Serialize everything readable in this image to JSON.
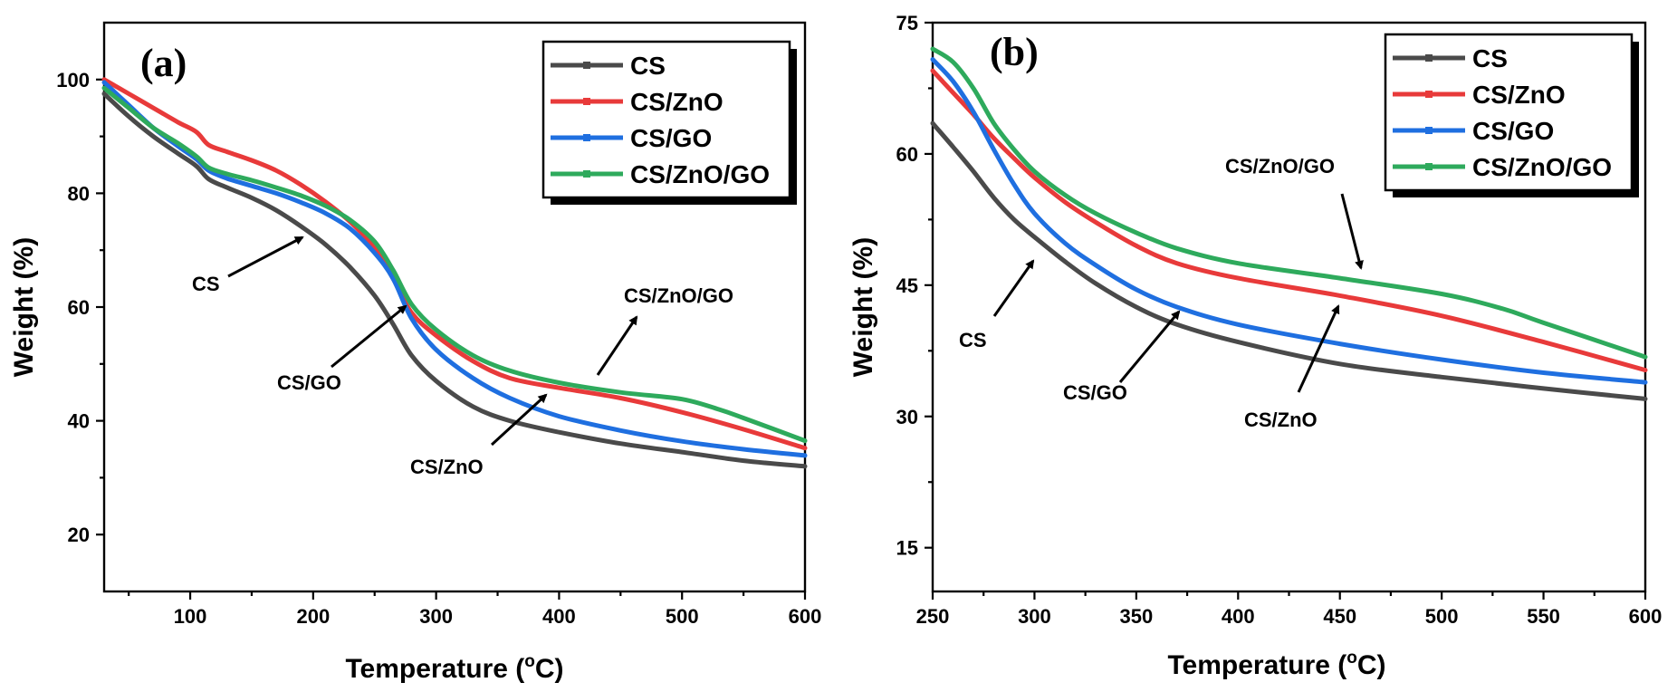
{
  "figure": {
    "colors": {
      "CS": "#4a4a4a",
      "CS/ZnO": "#e83a3a",
      "CS/GO": "#1f6fe0",
      "CS/ZnO/GO": "#2eaa5c"
    }
  },
  "chart_data": [
    {
      "type": "line",
      "panel": "(a)",
      "xlabel": "Temperature (",
      "xlabel_sup": "o",
      "xlabel_tail": "C)",
      "ylabel": "Weight (%)",
      "xlim": [
        30,
        600
      ],
      "ylim": [
        10,
        110
      ],
      "xticks": [
        100,
        200,
        300,
        400,
        500,
        600
      ],
      "yticks": [
        20,
        40,
        60,
        80,
        100
      ],
      "legend": [
        "CS",
        "CS/ZnO",
        "CS/GO",
        "CS/ZnO/GO"
      ],
      "series": [
        {
          "name": "CS",
          "x": [
            30,
            50,
            70,
            90,
            105,
            115,
            130,
            150,
            170,
            190,
            210,
            230,
            250,
            265,
            280,
            300,
            330,
            360,
            400,
            450,
            500,
            550,
            600
          ],
          "y": [
            97.5,
            93.5,
            90,
            87,
            84.8,
            82.5,
            81,
            79.2,
            77,
            74.2,
            71,
            67,
            62,
            57,
            51.5,
            47,
            42.5,
            40,
            38,
            36,
            34.5,
            33,
            32
          ]
        },
        {
          "name": "CS/ZnO",
          "x": [
            30,
            50,
            70,
            90,
            105,
            115,
            130,
            150,
            170,
            190,
            210,
            230,
            250,
            265,
            280,
            300,
            330,
            360,
            400,
            450,
            500,
            550,
            600
          ],
          "y": [
            100,
            97.5,
            95,
            92.5,
            90.8,
            88.5,
            87.3,
            85.8,
            84,
            81.5,
            78.5,
            75,
            70.5,
            65,
            59,
            55,
            50.5,
            47.5,
            45.8,
            44,
            41.5,
            38.5,
            35.2
          ]
        },
        {
          "name": "CS/GO",
          "x": [
            30,
            50,
            70,
            90,
            105,
            115,
            130,
            150,
            170,
            190,
            210,
            230,
            250,
            265,
            280,
            300,
            330,
            360,
            400,
            450,
            500,
            550,
            600
          ],
          "y": [
            99.5,
            95.5,
            91.5,
            88.3,
            86,
            84,
            82.6,
            81.3,
            80,
            78.4,
            76.5,
            73.8,
            69.5,
            65,
            58,
            52.5,
            47.5,
            44,
            40.8,
            38.3,
            36.4,
            35,
            33.9
          ]
        },
        {
          "name": "CS/ZnO/GO",
          "x": [
            30,
            50,
            70,
            90,
            105,
            115,
            130,
            150,
            170,
            190,
            210,
            230,
            250,
            265,
            280,
            300,
            330,
            360,
            400,
            450,
            500,
            530,
            550,
            600
          ],
          "y": [
            98.5,
            95,
            91.5,
            88.8,
            86.5,
            84.5,
            83.4,
            82.3,
            81,
            79.6,
            77.8,
            75.3,
            71.5,
            66.5,
            60.5,
            56,
            51.5,
            48.8,
            46.7,
            45,
            43.8,
            42,
            40.5,
            36.5
          ]
        }
      ],
      "annotations": [
        {
          "label": "CS"
        },
        {
          "label": "CS/GO"
        },
        {
          "label": "CS/ZnO"
        },
        {
          "label": "CS/ZnO/GO"
        }
      ]
    },
    {
      "type": "line",
      "panel": "(b)",
      "xlabel": "Temperature (",
      "xlabel_sup": "o",
      "xlabel_tail": "C)",
      "ylabel": "Weight (%)",
      "xlim": [
        250,
        600
      ],
      "ylim": [
        10,
        75
      ],
      "xticks": [
        250,
        300,
        350,
        400,
        450,
        500,
        550,
        600
      ],
      "yticks": [
        15,
        30,
        45,
        60,
        75
      ],
      "legend": [
        "CS",
        "CS/ZnO",
        "CS/GO",
        "CS/ZnO/GO"
      ],
      "series": [
        {
          "name": "CS",
          "x": [
            250,
            260,
            270,
            280,
            290,
            300,
            315,
            330,
            350,
            370,
            400,
            450,
            500,
            550,
            600
          ],
          "y": [
            63.5,
            60.8,
            58,
            55,
            52.5,
            50.5,
            47.7,
            45.2,
            42.5,
            40.5,
            38.5,
            36,
            34.5,
            33.2,
            32
          ]
        },
        {
          "name": "CS/ZnO",
          "x": [
            250,
            260,
            270,
            280,
            290,
            300,
            315,
            330,
            350,
            370,
            400,
            450,
            500,
            550,
            600
          ],
          "y": [
            69.5,
            67,
            64.5,
            61.8,
            59.5,
            57.3,
            54.5,
            52.2,
            49.5,
            47.5,
            45.8,
            43.8,
            41.5,
            38.5,
            35.3
          ]
        },
        {
          "name": "CS/GO",
          "x": [
            250,
            260,
            270,
            280,
            290,
            300,
            315,
            330,
            350,
            370,
            400,
            450,
            500,
            550,
            600
          ],
          "y": [
            70.8,
            68.3,
            64.8,
            60.5,
            56.5,
            53.2,
            49.8,
            47.3,
            44.5,
            42.5,
            40.5,
            38.3,
            36.5,
            35,
            33.9
          ]
        },
        {
          "name": "CS/ZnO/GO",
          "x": [
            250,
            260,
            270,
            280,
            290,
            300,
            315,
            330,
            350,
            370,
            400,
            450,
            500,
            530,
            550,
            600
          ],
          "y": [
            72,
            70.5,
            67.5,
            63.5,
            60.5,
            58,
            55.3,
            53.2,
            51,
            49.2,
            47.5,
            45.8,
            44,
            42.3,
            40.7,
            36.8
          ]
        }
      ],
      "annotations": [
        {
          "label": "CS"
        },
        {
          "label": "CS/GO"
        },
        {
          "label": "CS/ZnO"
        },
        {
          "label": "CS/ZnO/GO"
        }
      ]
    }
  ]
}
